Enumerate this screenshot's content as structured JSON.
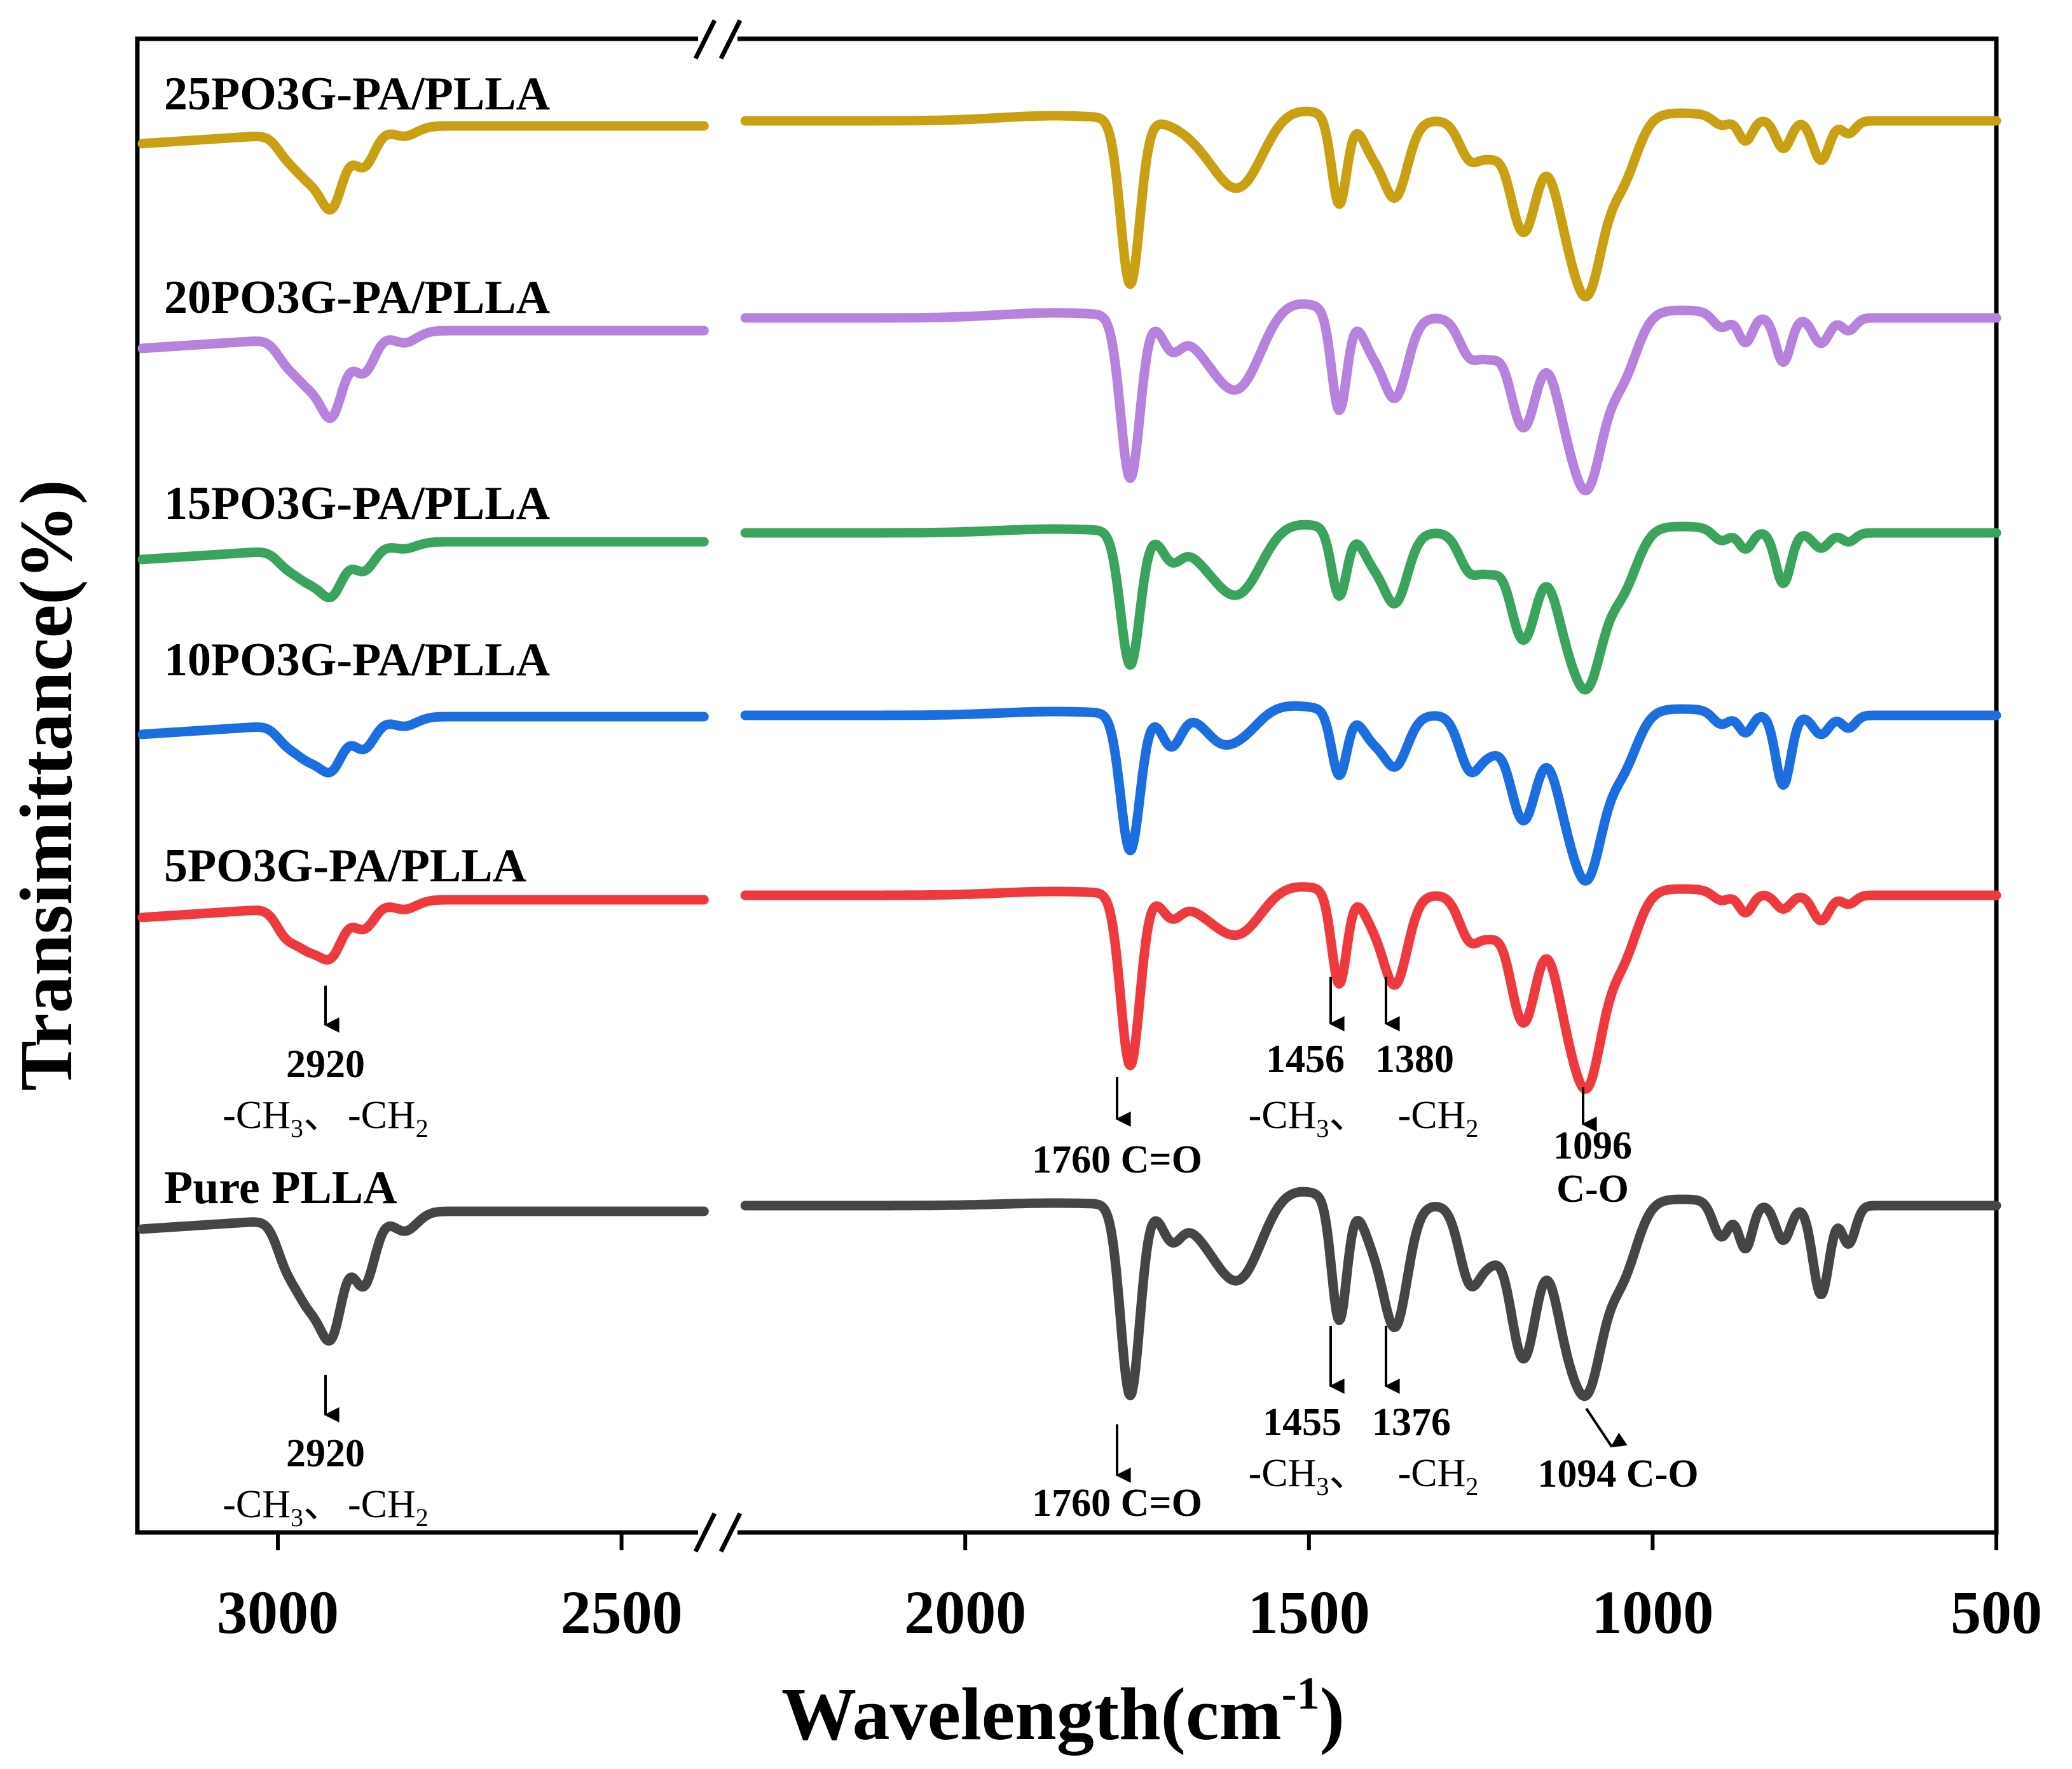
{
  "chart_data": {
    "type": "line",
    "ylabel": "Transimittance(%)",
    "xlabel": {
      "base": "Wavelength(cm",
      "sup": "-1",
      "close": ")"
    },
    "x_range": [
      3200,
      500
    ],
    "axis_break": [
      2380,
      2320
    ],
    "x_ticks": [
      {
        "value": 3000,
        "label": "3000"
      },
      {
        "value": 2500,
        "label": "2500"
      },
      {
        "value": 2000,
        "label": "2000"
      },
      {
        "value": 1500,
        "label": "1500"
      },
      {
        "value": 1000,
        "label": "1000"
      },
      {
        "value": 500,
        "label": "500"
      }
    ],
    "series": [
      {
        "name": "25PO3G-PA/PLLA",
        "color": "#c9a013",
        "baseline": 0,
        "scale": 1.0,
        "dips": [
          [
            2990,
            18,
            14
          ],
          [
            2955,
            70,
            22
          ],
          [
            2920,
            100,
            16
          ],
          [
            2875,
            58,
            16
          ],
          [
            2815,
            15,
            18
          ],
          [
            1760,
            260,
            14
          ],
          [
            1630,
            48,
            40
          ],
          [
            1595,
            75,
            32
          ],
          [
            1456,
            138,
            11
          ],
          [
            1410,
            38,
            14
          ],
          [
            1375,
            120,
            18
          ],
          [
            1265,
            60,
            16
          ],
          [
            1235,
            40,
            14
          ],
          [
            1188,
            175,
            20
          ],
          [
            1130,
            95,
            18
          ],
          [
            1095,
            255,
            22
          ],
          [
            1045,
            95,
            22
          ],
          [
            900,
            14,
            12
          ],
          [
            865,
            35,
            10
          ],
          [
            810,
            44,
            11
          ],
          [
            755,
            62,
            12
          ],
          [
            715,
            20,
            10
          ]
        ],
        "bumps": [
          [
            1870,
            8,
            80
          ],
          [
            1525,
            18,
            50
          ],
          [
            960,
            12,
            60
          ]
        ]
      },
      {
        "name": "20PO3G-PA/PLLA",
        "color": "#b682dd",
        "baseline": 0,
        "scale": 1.0,
        "dips": [
          [
            2990,
            20,
            14
          ],
          [
            2955,
            72,
            22
          ],
          [
            2920,
            105,
            16
          ],
          [
            2875,
            60,
            16
          ],
          [
            2815,
            18,
            18
          ],
          [
            1760,
            255,
            14
          ],
          [
            1700,
            40,
            14
          ],
          [
            1630,
            65,
            40
          ],
          [
            1595,
            70,
            30
          ],
          [
            1456,
            155,
            11
          ],
          [
            1410,
            40,
            14
          ],
          [
            1375,
            125,
            18
          ],
          [
            1265,
            60,
            16
          ],
          [
            1235,
            45,
            14
          ],
          [
            1188,
            172,
            20
          ],
          [
            1130,
            95,
            18
          ],
          [
            1095,
            250,
            22
          ],
          [
            1045,
            95,
            22
          ],
          [
            900,
            22,
            12
          ],
          [
            865,
            42,
            10
          ],
          [
            810,
            70,
            11
          ],
          [
            755,
            40,
            12
          ],
          [
            715,
            20,
            10
          ]
        ],
        "bumps": [
          [
            1870,
            8,
            80
          ],
          [
            1525,
            25,
            50
          ],
          [
            960,
            12,
            60
          ]
        ]
      },
      {
        "name": "15PO3G-PA/PLLA",
        "color": "#3ba35e",
        "baseline": 0,
        "scale": 1.0,
        "dips": [
          [
            2990,
            14,
            14
          ],
          [
            2955,
            50,
            22
          ],
          [
            2920,
            62,
            16
          ],
          [
            2875,
            40,
            16
          ],
          [
            2815,
            10,
            18
          ],
          [
            1760,
            210,
            14
          ],
          [
            1700,
            35,
            14
          ],
          [
            1630,
            55,
            40
          ],
          [
            1595,
            60,
            30
          ],
          [
            1456,
            105,
            11
          ],
          [
            1410,
            35,
            14
          ],
          [
            1375,
            110,
            18
          ],
          [
            1265,
            60,
            16
          ],
          [
            1235,
            45,
            14
          ],
          [
            1188,
            168,
            20
          ],
          [
            1130,
            95,
            18
          ],
          [
            1095,
            225,
            22
          ],
          [
            1045,
            90,
            22
          ],
          [
            900,
            18,
            12
          ],
          [
            865,
            28,
            10
          ],
          [
            810,
            80,
            11
          ],
          [
            755,
            24,
            12
          ],
          [
            715,
            14,
            10
          ]
        ],
        "bumps": [
          [
            1870,
            6,
            80
          ],
          [
            1525,
            15,
            50
          ],
          [
            960,
            10,
            60
          ]
        ]
      },
      {
        "name": "10PO3G-PA/PLLA",
        "color": "#1c6ee0",
        "baseline": 0,
        "scale": 1.0,
        "dips": [
          [
            2990,
            16,
            14
          ],
          [
            2955,
            55,
            22
          ],
          [
            2920,
            60,
            16
          ],
          [
            2875,
            45,
            16
          ],
          [
            2815,
            14,
            18
          ],
          [
            1760,
            215,
            14
          ],
          [
            1700,
            50,
            14
          ],
          [
            1630,
            35,
            22
          ],
          [
            1595,
            30,
            24
          ],
          [
            1456,
            100,
            11
          ],
          [
            1410,
            30,
            14
          ],
          [
            1375,
            80,
            18
          ],
          [
            1265,
            85,
            16
          ],
          [
            1235,
            40,
            14
          ],
          [
            1188,
            165,
            20
          ],
          [
            1130,
            90,
            18
          ],
          [
            1095,
            240,
            22
          ],
          [
            1045,
            85,
            22
          ],
          [
            900,
            20,
            12
          ],
          [
            865,
            30,
            10
          ],
          [
            810,
            110,
            11
          ],
          [
            755,
            30,
            12
          ],
          [
            715,
            20,
            10
          ]
        ],
        "bumps": [
          [
            1870,
            6,
            80
          ],
          [
            1525,
            15,
            50
          ],
          [
            960,
            10,
            60
          ]
        ]
      },
      {
        "name": "5PO3G-PA/PLLA",
        "color": "#ee3a3f",
        "baseline": 0,
        "scale": 1.0,
        "dips": [
          [
            2990,
            28,
            14
          ],
          [
            2955,
            65,
            22
          ],
          [
            2920,
            62,
            16
          ],
          [
            2875,
            40,
            16
          ],
          [
            2815,
            14,
            18
          ],
          [
            1760,
            270,
            14
          ],
          [
            1700,
            30,
            14
          ],
          [
            1630,
            35,
            40
          ],
          [
            1595,
            40,
            30
          ],
          [
            1456,
            145,
            11
          ],
          [
            1410,
            30,
            14
          ],
          [
            1375,
            140,
            18
          ],
          [
            1265,
            70,
            16
          ],
          [
            1235,
            45,
            14
          ],
          [
            1188,
            200,
            20
          ],
          [
            1130,
            110,
            18
          ],
          [
            1095,
            280,
            22
          ],
          [
            1045,
            100,
            22
          ],
          [
            900,
            14,
            12
          ],
          [
            865,
            30,
            10
          ],
          [
            810,
            22,
            11
          ],
          [
            755,
            40,
            12
          ],
          [
            715,
            14,
            10
          ]
        ],
        "bumps": [
          [
            1870,
            6,
            80
          ],
          [
            1525,
            15,
            50
          ],
          [
            960,
            10,
            60
          ]
        ]
      },
      {
        "name": "Pure PLLA",
        "color": "#454545",
        "baseline": 0,
        "scale": 1.0,
        "dips": [
          [
            2990,
            40,
            14
          ],
          [
            2955,
            130,
            22
          ],
          [
            2920,
            150,
            16
          ],
          [
            2875,
            110,
            16
          ],
          [
            2815,
            30,
            18
          ],
          [
            1760,
            300,
            14
          ],
          [
            1700,
            45,
            14
          ],
          [
            1630,
            60,
            40
          ],
          [
            1595,
            80,
            30
          ],
          [
            1456,
            190,
            11
          ],
          [
            1410,
            40,
            14
          ],
          [
            1375,
            190,
            18
          ],
          [
            1265,
            120,
            16
          ],
          [
            1235,
            60,
            14
          ],
          [
            1188,
            240,
            20
          ],
          [
            1130,
            130,
            18
          ],
          [
            1095,
            270,
            22
          ],
          [
            1045,
            110,
            22
          ],
          [
            900,
            55,
            12
          ],
          [
            865,
            70,
            10
          ],
          [
            810,
            55,
            11
          ],
          [
            755,
            140,
            12
          ],
          [
            715,
            60,
            10
          ]
        ],
        "bumps": [
          [
            1870,
            4,
            80
          ],
          [
            1525,
            25,
            50
          ],
          [
            960,
            10,
            60
          ]
        ]
      }
    ],
    "annotations": [
      {
        "id": "a-2920-5",
        "number": "2920",
        "groups": [
          [
            "-CH",
            "3",
            "、"
          ],
          [
            "-CH",
            "2",
            ""
          ]
        ]
      },
      {
        "id": "a-1760-5",
        "number": "1760 C=O"
      },
      {
        "id": "a-1456-5",
        "number": "1456",
        "groups": [
          [
            "-CH",
            "3",
            "、"
          ]
        ]
      },
      {
        "id": "a-1380-5",
        "number": "1380",
        "groups": [
          [
            "-CH",
            "2",
            ""
          ]
        ]
      },
      {
        "id": "a-1096-5",
        "number": "1096",
        "line2": "C-O"
      },
      {
        "id": "a-2920-p",
        "number": "2920",
        "groups": [
          [
            "-CH",
            "3",
            "、"
          ],
          [
            "-CH",
            "2",
            ""
          ]
        ]
      },
      {
        "id": "a-1760-p",
        "number": "1760 C=O"
      },
      {
        "id": "a-1455-p",
        "number": "1455",
        "groups": [
          [
            "-CH",
            "3",
            "、"
          ]
        ]
      },
      {
        "id": "a-1376-p",
        "number": "1376",
        "groups": [
          [
            "-CH",
            "2",
            ""
          ]
        ]
      },
      {
        "id": "a-1094-p",
        "number": "1094 C-O"
      }
    ]
  }
}
